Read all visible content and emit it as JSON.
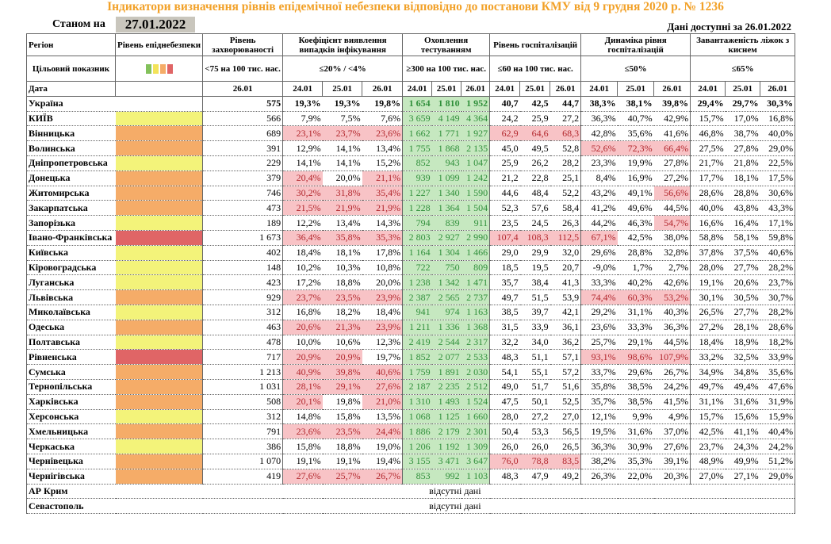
{
  "title": "Індикатори визначення рівнів епідемічної небезпеки відповідно до постанови КМУ від 9 грудня 2020 р. № 1236",
  "as_of_label": "Станом на",
  "as_of_date": "27.01.2022",
  "data_for": "Дані доступні за 26.01.2022",
  "headers": {
    "region": "Регіон",
    "level": "Рівень епіднебезпеки",
    "morbidity": "Рівень захворюваності",
    "detection": "Коефіцієнт виявлення випадків інфікування",
    "testing": "Охоплення тестуванням",
    "hosp": "Рівень госпіталізацій",
    "hosp_dyn": "Динаміка рівня госпіталізацій",
    "oxygen": "Завантаженість ліжок з киснем"
  },
  "targets": {
    "label": "Цільовий показник",
    "morbidity": "<75 на 100 тис. нас.",
    "detection": "≤20% / <4%",
    "testing": "≥300 на 100 тис. нас.",
    "hosp": "≤60 на 100 тис. нас.",
    "hosp_dyn": "≤50%",
    "oxygen": "≤65%"
  },
  "legend_colors": [
    "#83c15b",
    "#f3e35a",
    "#f5ac68",
    "#e06566"
  ],
  "date_row": {
    "label": "Дата",
    "morbidity": "26.01",
    "d1": "24.01",
    "d2": "25.01",
    "d3": "26.01"
  },
  "absent_text": "відсутні дані",
  "absent_regions": [
    "АР Крим",
    "Севастополь"
  ],
  "rows": [
    {
      "region": "Україна",
      "level": "",
      "m": "575",
      "det": [
        "19,3%",
        "19,3%",
        "19,8%"
      ],
      "tst": [
        "1 654",
        "1 810",
        "1 952"
      ],
      "hsp": [
        "40,7",
        "42,5",
        "44,7"
      ],
      "dyn": [
        "38,3%",
        "38,1%",
        "39,8%"
      ],
      "oxy": [
        "29,4%",
        "29,7%",
        "30,3%"
      ]
    },
    {
      "region": "КИЇВ",
      "level": "yellow",
      "m": "566",
      "det": [
        "7,9%",
        "7,5%",
        "7,6%"
      ],
      "tst": [
        "3 659",
        "4 149",
        "4 364"
      ],
      "hsp": [
        "24,2",
        "25,9",
        "27,2"
      ],
      "dyn": [
        "36,3%",
        "40,7%",
        "42,9%"
      ],
      "oxy": [
        "15,7%",
        "17,0%",
        "16,8%"
      ]
    },
    {
      "region": "Вінницька",
      "level": "orange",
      "m": "689",
      "det": [
        "23,1%",
        "23,7%",
        "23,6%"
      ],
      "tst": [
        "1 662",
        "1 771",
        "1 927"
      ],
      "hsp": [
        "62,9",
        "64,6",
        "68,3"
      ],
      "dyn": [
        "42,8%",
        "35,6%",
        "41,6%"
      ],
      "oxy": [
        "46,8%",
        "38,7%",
        "40,0%"
      ]
    },
    {
      "region": "Волинська",
      "level": "orange",
      "m": "391",
      "det": [
        "12,9%",
        "14,1%",
        "13,4%"
      ],
      "tst": [
        "1 755",
        "1 868",
        "2 135"
      ],
      "hsp": [
        "45,0",
        "49,5",
        "52,8"
      ],
      "dyn": [
        "52,6%",
        "72,3%",
        "66,4%"
      ],
      "oxy": [
        "27,5%",
        "27,8%",
        "29,0%"
      ]
    },
    {
      "region": "Дніпропетровська",
      "level": "yellow",
      "m": "229",
      "det": [
        "14,1%",
        "14,1%",
        "15,2%"
      ],
      "tst": [
        "852",
        "943",
        "1 047"
      ],
      "hsp": [
        "25,9",
        "26,2",
        "28,2"
      ],
      "dyn": [
        "23,3%",
        "19,9%",
        "27,8%"
      ],
      "oxy": [
        "21,7%",
        "21,8%",
        "22,5%"
      ]
    },
    {
      "region": "Донецька",
      "level": "orange",
      "m": "379",
      "det": [
        "20,4%",
        "20,0%",
        "21,1%"
      ],
      "tst": [
        "939",
        "1 099",
        "1 242"
      ],
      "hsp": [
        "21,2",
        "22,8",
        "25,1"
      ],
      "dyn": [
        "8,4%",
        "16,9%",
        "27,2%"
      ],
      "oxy": [
        "17,7%",
        "18,1%",
        "17,5%"
      ]
    },
    {
      "region": "Житомирська",
      "level": "orange",
      "m": "746",
      "det": [
        "30,2%",
        "31,8%",
        "35,4%"
      ],
      "tst": [
        "1 227",
        "1 340",
        "1 590"
      ],
      "hsp": [
        "44,6",
        "48,4",
        "52,2"
      ],
      "dyn": [
        "43,2%",
        "49,1%",
        "56,6%"
      ],
      "oxy": [
        "28,6%",
        "28,8%",
        "30,6%"
      ]
    },
    {
      "region": "Закарпатська",
      "level": "orange",
      "m": "473",
      "det": [
        "21,5%",
        "21,9%",
        "21,9%"
      ],
      "tst": [
        "1 228",
        "1 364",
        "1 504"
      ],
      "hsp": [
        "52,3",
        "57,6",
        "58,4"
      ],
      "dyn": [
        "41,2%",
        "49,6%",
        "44,5%"
      ],
      "oxy": [
        "40,0%",
        "43,8%",
        "43,3%"
      ]
    },
    {
      "region": "Запорізька",
      "level": "yellow",
      "m": "189",
      "det": [
        "12,2%",
        "13,4%",
        "14,3%"
      ],
      "tst": [
        "794",
        "839",
        "911"
      ],
      "hsp": [
        "23,5",
        "24,5",
        "26,3"
      ],
      "dyn": [
        "44,2%",
        "46,3%",
        "54,7%"
      ],
      "oxy": [
        "16,6%",
        "16,4%",
        "17,1%"
      ]
    },
    {
      "region": "Івано-Франківська",
      "level": "red",
      "m": "1 673",
      "det": [
        "36,4%",
        "35,8%",
        "35,3%"
      ],
      "tst": [
        "2 803",
        "2 927",
        "2 990"
      ],
      "hsp": [
        "107,4",
        "108,3",
        "112,5"
      ],
      "dyn": [
        "67,1%",
        "42,5%",
        "38,0%"
      ],
      "oxy": [
        "58,8%",
        "58,1%",
        "59,8%"
      ]
    },
    {
      "region": "Київська",
      "level": "yellow",
      "m": "402",
      "det": [
        "18,4%",
        "18,1%",
        "17,8%"
      ],
      "tst": [
        "1 164",
        "1 304",
        "1 466"
      ],
      "hsp": [
        "29,0",
        "29,9",
        "32,0"
      ],
      "dyn": [
        "29,6%",
        "28,8%",
        "32,8%"
      ],
      "oxy": [
        "37,8%",
        "37,5%",
        "40,6%"
      ]
    },
    {
      "region": "Кіровоградська",
      "level": "yellow",
      "m": "148",
      "det": [
        "10,2%",
        "10,3%",
        "10,8%"
      ],
      "tst": [
        "722",
        "750",
        "809"
      ],
      "hsp": [
        "18,5",
        "19,5",
        "20,7"
      ],
      "dyn": [
        "-9,0%",
        "1,7%",
        "2,7%"
      ],
      "oxy": [
        "28,0%",
        "27,7%",
        "28,2%"
      ]
    },
    {
      "region": "Луганська",
      "level": "yellow",
      "m": "423",
      "det": [
        "17,2%",
        "18,8%",
        "20,0%"
      ],
      "tst": [
        "1 238",
        "1 342",
        "1 471"
      ],
      "hsp": [
        "35,7",
        "38,4",
        "41,3"
      ],
      "dyn": [
        "33,3%",
        "40,2%",
        "42,6%"
      ],
      "oxy": [
        "19,1%",
        "20,6%",
        "23,7%"
      ]
    },
    {
      "region": "Львівська",
      "level": "orange",
      "m": "929",
      "det": [
        "23,7%",
        "23,5%",
        "23,9%"
      ],
      "tst": [
        "2 387",
        "2 565",
        "2 737"
      ],
      "hsp": [
        "49,7",
        "51,5",
        "53,9"
      ],
      "dyn": [
        "74,4%",
        "60,3%",
        "53,2%"
      ],
      "oxy": [
        "30,1%",
        "30,5%",
        "30,7%"
      ]
    },
    {
      "region": "Миколаївська",
      "level": "yellow",
      "m": "312",
      "det": [
        "16,8%",
        "18,2%",
        "18,4%"
      ],
      "tst": [
        "941",
        "974",
        "1 163"
      ],
      "hsp": [
        "38,5",
        "39,7",
        "42,1"
      ],
      "dyn": [
        "29,2%",
        "31,1%",
        "40,3%"
      ],
      "oxy": [
        "26,5%",
        "27,7%",
        "28,2%"
      ]
    },
    {
      "region": "Одеська",
      "level": "orange",
      "m": "463",
      "det": [
        "20,6%",
        "21,3%",
        "23,9%"
      ],
      "tst": [
        "1 211",
        "1 336",
        "1 368"
      ],
      "hsp": [
        "31,5",
        "33,9",
        "36,1"
      ],
      "dyn": [
        "23,6%",
        "33,3%",
        "36,3%"
      ],
      "oxy": [
        "27,2%",
        "28,1%",
        "28,6%"
      ]
    },
    {
      "region": "Полтавська",
      "level": "yellow",
      "m": "478",
      "det": [
        "10,0%",
        "10,6%",
        "12,3%"
      ],
      "tst": [
        "2 419",
        "2 544",
        "2 317"
      ],
      "hsp": [
        "32,2",
        "34,0",
        "36,2"
      ],
      "dyn": [
        "25,7%",
        "29,1%",
        "44,5%"
      ],
      "oxy": [
        "18,4%",
        "18,9%",
        "18,2%"
      ]
    },
    {
      "region": "Рівненська",
      "level": "red",
      "m": "717",
      "det": [
        "20,9%",
        "20,9%",
        "19,7%"
      ],
      "tst": [
        "1 852",
        "2 077",
        "2 533"
      ],
      "hsp": [
        "48,3",
        "51,1",
        "57,1"
      ],
      "dyn": [
        "93,1%",
        "98,6%",
        "107,9%"
      ],
      "oxy": [
        "33,2%",
        "32,5%",
        "33,9%"
      ]
    },
    {
      "region": "Сумська",
      "level": "orange",
      "m": "1 213",
      "det": [
        "40,9%",
        "39,8%",
        "40,6%"
      ],
      "tst": [
        "1 759",
        "1 891",
        "2 030"
      ],
      "hsp": [
        "54,1",
        "55,1",
        "57,2"
      ],
      "dyn": [
        "33,7%",
        "29,6%",
        "26,7%"
      ],
      "oxy": [
        "34,9%",
        "34,8%",
        "35,6%"
      ]
    },
    {
      "region": "Тернопільська",
      "level": "orange",
      "m": "1 031",
      "det": [
        "28,1%",
        "29,1%",
        "27,6%"
      ],
      "tst": [
        "2 187",
        "2 235",
        "2 512"
      ],
      "hsp": [
        "49,0",
        "51,7",
        "51,6"
      ],
      "dyn": [
        "35,8%",
        "38,5%",
        "24,2%"
      ],
      "oxy": [
        "49,7%",
        "49,4%",
        "47,6%"
      ]
    },
    {
      "region": "Харківська",
      "level": "orange",
      "m": "508",
      "det": [
        "20,1%",
        "19,8%",
        "21,0%"
      ],
      "tst": [
        "1 310",
        "1 493",
        "1 524"
      ],
      "hsp": [
        "47,5",
        "50,1",
        "52,5"
      ],
      "dyn": [
        "35,7%",
        "38,5%",
        "41,5%"
      ],
      "oxy": [
        "31,1%",
        "31,6%",
        "31,9%"
      ]
    },
    {
      "region": "Херсонська",
      "level": "yellow",
      "m": "312",
      "det": [
        "14,8%",
        "15,8%",
        "13,5%"
      ],
      "tst": [
        "1 068",
        "1 125",
        "1 660"
      ],
      "hsp": [
        "28,0",
        "27,2",
        "27,0"
      ],
      "dyn": [
        "12,1%",
        "9,9%",
        "4,9%"
      ],
      "oxy": [
        "15,7%",
        "15,6%",
        "15,9%"
      ]
    },
    {
      "region": "Хмельницька",
      "level": "orange",
      "m": "791",
      "det": [
        "23,6%",
        "23,5%",
        "24,4%"
      ],
      "tst": [
        "1 886",
        "2 179",
        "2 301"
      ],
      "hsp": [
        "50,4",
        "53,3",
        "56,5"
      ],
      "dyn": [
        "19,5%",
        "31,6%",
        "37,0%"
      ],
      "oxy": [
        "42,5%",
        "41,1%",
        "40,4%"
      ]
    },
    {
      "region": "Черкаська",
      "level": "yellow",
      "m": "386",
      "det": [
        "15,8%",
        "18,8%",
        "19,0%"
      ],
      "tst": [
        "1 206",
        "1 192",
        "1 309"
      ],
      "hsp": [
        "26,0",
        "26,0",
        "26,5"
      ],
      "dyn": [
        "36,3%",
        "30,9%",
        "27,6%"
      ],
      "oxy": [
        "23,7%",
        "24,3%",
        "24,2%"
      ]
    },
    {
      "region": "Чернівецька",
      "level": "orange",
      "m": "1 070",
      "det": [
        "19,1%",
        "19,1%",
        "19,4%"
      ],
      "tst": [
        "3 155",
        "3 471",
        "3 647"
      ],
      "hsp": [
        "76,0",
        "78,8",
        "83,5"
      ],
      "dyn": [
        "38,2%",
        "35,3%",
        "39,1%"
      ],
      "oxy": [
        "48,9%",
        "49,9%",
        "51,2%"
      ]
    },
    {
      "region": "Чернігівська",
      "level": "orange",
      "m": "419",
      "det": [
        "27,6%",
        "25,7%",
        "26,7%"
      ],
      "tst": [
        "853",
        "992",
        "1 103"
      ],
      "hsp": [
        "48,3",
        "47,9",
        "49,2"
      ],
      "dyn": [
        "26,3%",
        "22,0%",
        "20,3%"
      ],
      "oxy": [
        "27,0%",
        "27,1%",
        "29,0%"
      ]
    }
  ]
}
